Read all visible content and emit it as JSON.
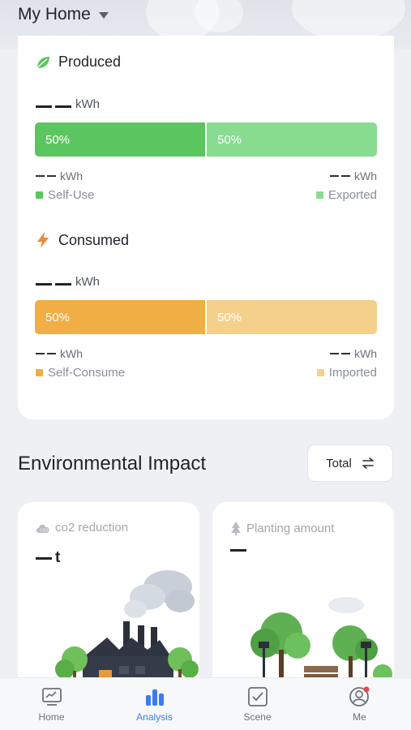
{
  "header": {
    "home_name": "My Home"
  },
  "produced": {
    "title": "Produced",
    "total_value": "",
    "unit": "kWh",
    "left_pct": "50%",
    "right_pct": "50%",
    "self_use_unit": "kWh",
    "exported_unit": "kWh",
    "self_use_label": "Self-Use",
    "exported_label": "Exported",
    "colors": {
      "self_use": "#5bc65f",
      "exported": "#88dc8f"
    }
  },
  "consumed": {
    "title": "Consumed",
    "unit": "kWh",
    "left_pct": "50%",
    "right_pct": "50%",
    "self_consume_unit": "kWh",
    "imported_unit": "kWh",
    "self_consume_label": "Self-Consume",
    "imported_label": "Imported",
    "colors": {
      "self_consume": "#f1ae45",
      "imported": "#f4d08b"
    }
  },
  "environment": {
    "title": "Environmental Impact",
    "filter_label": "Total",
    "co2": {
      "label": "co2 reduction",
      "unit": "t"
    },
    "planting": {
      "label": "Planting amount"
    }
  },
  "nav": {
    "items": [
      {
        "label": "Home",
        "icon": "home-chart-icon"
      },
      {
        "label": "Analysis",
        "icon": "bar-chart-icon",
        "active": true
      },
      {
        "label": "Scene",
        "icon": "checkbox-icon"
      },
      {
        "label": "Me",
        "icon": "user-icon",
        "badge": true
      }
    ],
    "active_color": "#3d7bf0"
  }
}
